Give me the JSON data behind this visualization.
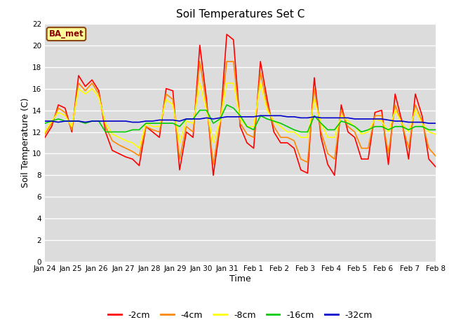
{
  "title": "Soil Temperatures Set C",
  "xlabel": "Time",
  "ylabel": "Soil Temperature (C)",
  "ylim": [
    0,
    22
  ],
  "yticks": [
    0,
    2,
    4,
    6,
    8,
    10,
    12,
    14,
    16,
    18,
    20,
    22
  ],
  "bg_color": "#dcdcdc",
  "plot_bg_color": "#dcdcdc",
  "grid_color": "#ffffff",
  "label_box_text": "BA_met",
  "label_box_facecolor": "#ffff99",
  "label_box_edgecolor": "#8B4513",
  "series_colors": {
    "-2cm": "#ff0000",
    "-4cm": "#ff8800",
    "-8cm": "#ffff00",
    "-16cm": "#00cc00",
    "-32cm": "#0000cc"
  },
  "x_tick_labels": [
    "Jan 24",
    "Jan 25",
    "Jan 26",
    "Jan 27",
    "Jan 28",
    "Jan 29",
    "Jan 30",
    "Jan 31",
    "Feb 1",
    "Feb 2",
    "Feb 3",
    "Feb 4",
    "Feb 5",
    "Feb 6",
    "Feb 7",
    "Feb 8"
  ],
  "neg2cm": [
    11.5,
    12.5,
    14.5,
    14.2,
    12.0,
    17.2,
    16.2,
    16.8,
    15.8,
    12.0,
    10.3,
    10.0,
    9.7,
    9.5,
    8.9,
    12.5,
    12.0,
    11.5,
    16.0,
    15.8,
    8.5,
    12.0,
    11.5,
    20.0,
    15.0,
    8.0,
    12.5,
    21.0,
    20.5,
    12.5,
    11.0,
    10.5,
    18.5,
    15.0,
    12.0,
    11.0,
    11.0,
    10.5,
    8.5,
    8.2,
    17.0,
    11.5,
    9.0,
    8.0,
    14.5,
    12.0,
    11.5,
    9.5,
    9.5,
    13.8,
    14.0,
    9.0,
    15.5,
    13.0,
    9.5,
    15.5,
    13.5,
    9.5,
    8.8
  ],
  "neg4cm": [
    11.8,
    12.8,
    14.2,
    13.8,
    12.2,
    16.5,
    15.8,
    16.5,
    15.5,
    12.5,
    11.2,
    10.8,
    10.5,
    10.2,
    9.8,
    12.5,
    12.2,
    12.0,
    15.5,
    15.0,
    9.5,
    12.5,
    12.0,
    18.5,
    14.5,
    9.0,
    12.8,
    18.5,
    18.5,
    12.8,
    11.8,
    11.5,
    17.5,
    14.5,
    12.5,
    11.5,
    11.5,
    11.2,
    9.5,
    9.2,
    16.0,
    12.0,
    10.0,
    9.5,
    14.0,
    12.5,
    12.0,
    10.5,
    10.5,
    13.5,
    13.5,
    10.0,
    14.5,
    12.8,
    10.5,
    14.5,
    13.0,
    10.5,
    9.8
  ],
  "neg8cm": [
    12.0,
    13.0,
    13.8,
    13.5,
    12.5,
    16.0,
    15.5,
    16.0,
    15.2,
    12.8,
    11.8,
    11.5,
    11.2,
    11.0,
    10.5,
    12.8,
    12.5,
    12.5,
    15.0,
    14.5,
    11.0,
    13.0,
    12.8,
    16.5,
    14.0,
    11.0,
    13.0,
    16.5,
    16.5,
    13.2,
    12.5,
    12.5,
    16.5,
    14.0,
    13.0,
    12.5,
    12.0,
    12.0,
    11.5,
    11.5,
    15.0,
    12.8,
    11.5,
    11.5,
    13.5,
    13.0,
    12.5,
    11.8,
    12.0,
    13.2,
    13.0,
    12.0,
    14.0,
    12.8,
    12.0,
    14.0,
    12.8,
    12.0,
    11.8
  ],
  "neg16cm": [
    12.8,
    13.0,
    13.2,
    13.0,
    13.0,
    13.0,
    12.8,
    13.0,
    13.0,
    12.0,
    12.0,
    12.0,
    12.0,
    12.2,
    12.2,
    12.8,
    12.8,
    12.8,
    12.8,
    12.8,
    12.5,
    13.2,
    13.2,
    14.0,
    14.0,
    12.8,
    13.2,
    14.5,
    14.2,
    13.5,
    12.5,
    12.2,
    13.5,
    13.2,
    13.0,
    12.8,
    12.5,
    12.2,
    12.0,
    12.0,
    13.5,
    12.8,
    12.2,
    12.2,
    13.0,
    12.8,
    12.5,
    12.0,
    12.2,
    12.5,
    12.5,
    12.2,
    12.5,
    12.5,
    12.2,
    12.5,
    12.5,
    12.2,
    12.2
  ],
  "neg32cm": [
    13.0,
    13.0,
    12.9,
    13.0,
    13.0,
    13.0,
    12.9,
    13.0,
    13.0,
    13.0,
    13.0,
    13.0,
    13.0,
    12.9,
    12.9,
    13.0,
    13.0,
    13.1,
    13.1,
    13.1,
    13.0,
    13.2,
    13.2,
    13.2,
    13.3,
    13.2,
    13.3,
    13.4,
    13.4,
    13.4,
    13.4,
    13.4,
    13.5,
    13.5,
    13.5,
    13.5,
    13.4,
    13.4,
    13.3,
    13.3,
    13.4,
    13.3,
    13.3,
    13.3,
    13.3,
    13.3,
    13.2,
    13.2,
    13.2,
    13.2,
    13.2,
    13.1,
    13.0,
    13.0,
    12.9,
    12.9,
    12.9,
    12.8,
    12.8
  ]
}
